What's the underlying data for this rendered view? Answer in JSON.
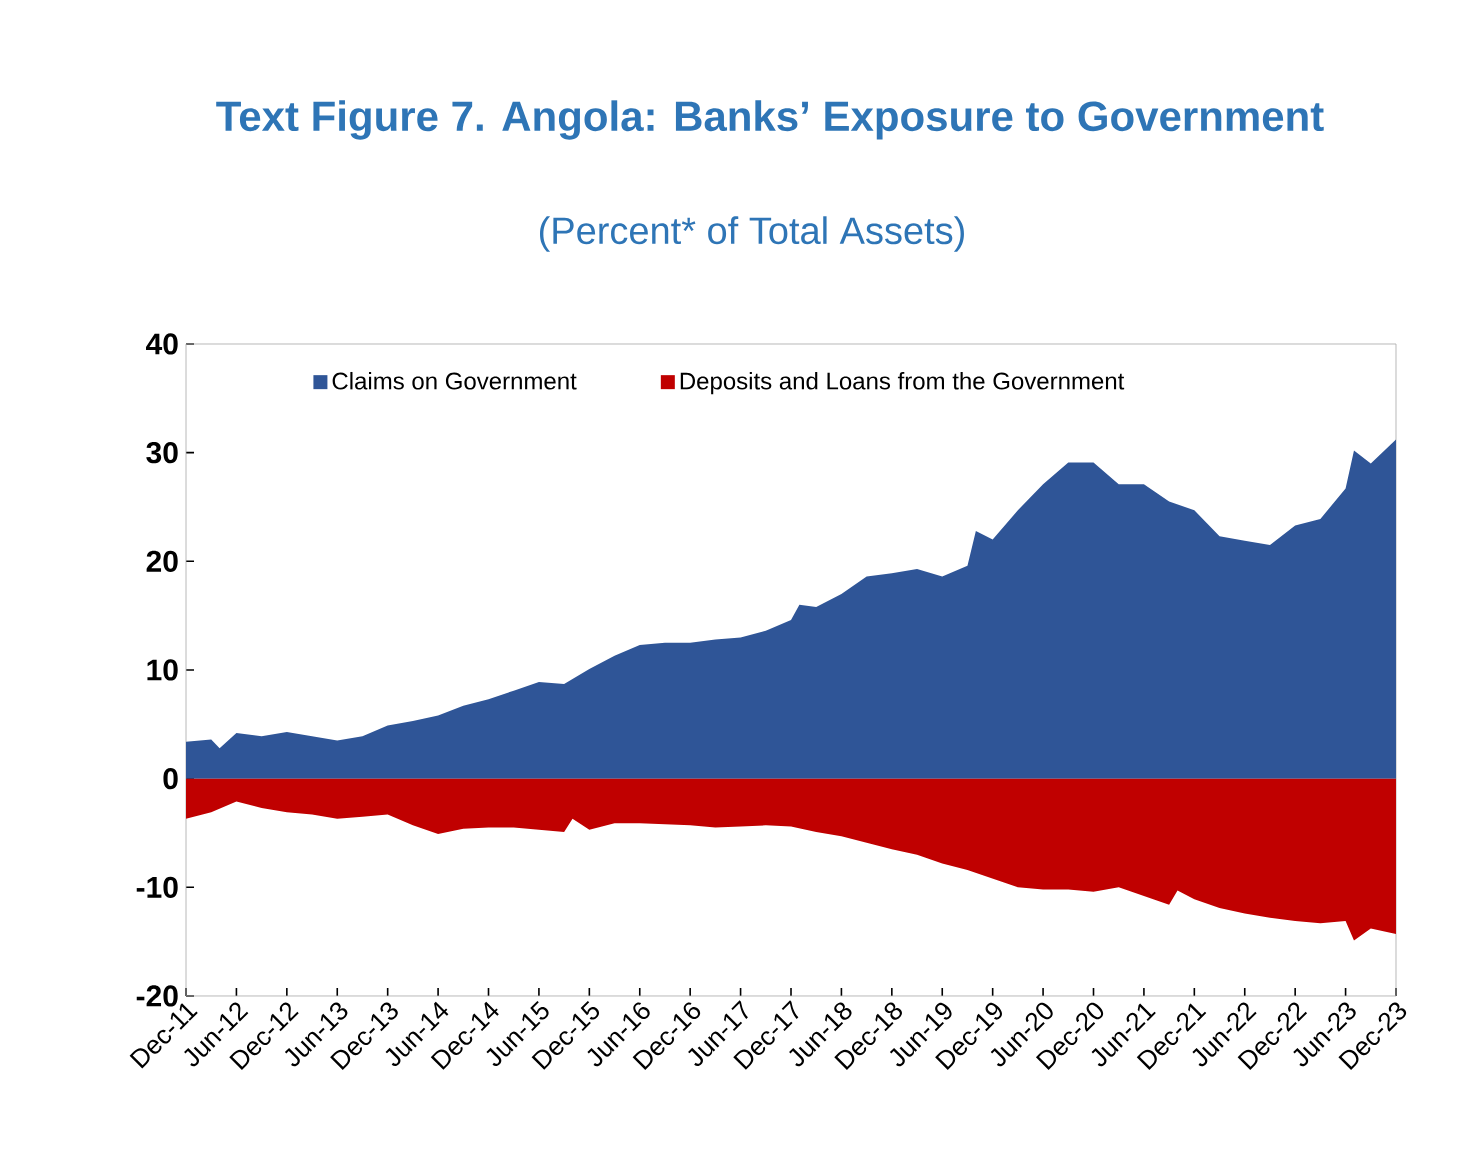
{
  "chart_data": {
    "type": "area",
    "title": "Text Figure 7. Angola: Banks’ Exposure to Government",
    "subtitle": "(Percent* of Total Assets)",
    "series": [
      {
        "name": "Claims on Government",
        "color": "#2f5597",
        "x": [
          "2011-12",
          "2012-03",
          "2012-04",
          "2012-06",
          "2012-09",
          "2012-12",
          "2013-03",
          "2013-06",
          "2013-09",
          "2013-12",
          "2014-03",
          "2014-06",
          "2014-09",
          "2014-12",
          "2015-03",
          "2015-06",
          "2015-09",
          "2015-12",
          "2016-03",
          "2016-06",
          "2016-09",
          "2016-12",
          "2017-03",
          "2017-06",
          "2017-09",
          "2017-12",
          "2018-01",
          "2018-03",
          "2018-06",
          "2018-09",
          "2018-12",
          "2019-03",
          "2019-06",
          "2019-09",
          "2019-10",
          "2019-12",
          "2020-03",
          "2020-06",
          "2020-09",
          "2020-12",
          "2021-03",
          "2021-06",
          "2021-09",
          "2021-12",
          "2022-03",
          "2022-06",
          "2022-09",
          "2022-12",
          "2023-03",
          "2023-06",
          "2023-07",
          "2023-09",
          "2023-12"
        ],
        "values": [
          3.4,
          3.6,
          2.8,
          4.2,
          3.9,
          4.3,
          3.9,
          3.5,
          3.9,
          4.9,
          5.3,
          5.8,
          6.7,
          7.3,
          8.1,
          8.9,
          8.7,
          10.1,
          11.3,
          12.3,
          12.5,
          12.5,
          12.8,
          13.0,
          13.6,
          14.6,
          16.0,
          15.8,
          17.0,
          18.6,
          18.9,
          19.3,
          18.6,
          19.6,
          22.8,
          22.0,
          24.7,
          27.1,
          29.1,
          29.1,
          27.1,
          27.1,
          25.5,
          24.7,
          22.3,
          21.9,
          21.5,
          23.3,
          23.9,
          26.7,
          30.2,
          29.0,
          31.2
        ]
      },
      {
        "name": "Deposits and Loans from the Government",
        "color": "#c00000",
        "x": [
          "2011-12",
          "2012-03",
          "2012-06",
          "2012-09",
          "2012-12",
          "2013-03",
          "2013-06",
          "2013-09",
          "2013-12",
          "2014-03",
          "2014-06",
          "2014-09",
          "2014-12",
          "2015-03",
          "2015-06",
          "2015-09",
          "2015-10",
          "2015-12",
          "2016-03",
          "2016-06",
          "2016-09",
          "2016-12",
          "2017-03",
          "2017-06",
          "2017-09",
          "2017-12",
          "2018-03",
          "2018-06",
          "2018-09",
          "2018-12",
          "2019-03",
          "2019-06",
          "2019-09",
          "2019-12",
          "2020-03",
          "2020-06",
          "2020-09",
          "2020-12",
          "2021-03",
          "2021-06",
          "2021-09",
          "2021-10",
          "2021-12",
          "2022-03",
          "2022-06",
          "2022-09",
          "2022-12",
          "2023-03",
          "2023-06",
          "2023-07",
          "2023-09",
          "2023-12"
        ],
        "values": [
          -3.7,
          -3.1,
          -2.1,
          -2.7,
          -3.1,
          -3.3,
          -3.7,
          -3.5,
          -3.3,
          -4.3,
          -5.1,
          -4.6,
          -4.5,
          -4.5,
          -4.7,
          -4.9,
          -3.7,
          -4.7,
          -4.1,
          -4.1,
          -4.2,
          -4.3,
          -4.5,
          -4.4,
          -4.3,
          -4.4,
          -4.9,
          -5.3,
          -5.9,
          -6.5,
          -7.0,
          -7.8,
          -8.4,
          -9.2,
          -10.0,
          -10.2,
          -10.2,
          -10.4,
          -10.0,
          -10.8,
          -11.6,
          -10.3,
          -11.1,
          -11.9,
          -12.4,
          -12.8,
          -13.1,
          -13.3,
          -13.1,
          -14.9,
          -13.8,
          -14.3
        ]
      }
    ],
    "xlim": [
      "2011-12",
      "2023-12"
    ],
    "xticks": [
      {
        "value": "2011-12",
        "label": "Dec-11"
      },
      {
        "value": "2012-06",
        "label": "Jun-12"
      },
      {
        "value": "2012-12",
        "label": "Dec-12"
      },
      {
        "value": "2013-06",
        "label": "Jun-13"
      },
      {
        "value": "2013-12",
        "label": "Dec-13"
      },
      {
        "value": "2014-06",
        "label": "Jun-14"
      },
      {
        "value": "2014-12",
        "label": "Dec-14"
      },
      {
        "value": "2015-06",
        "label": "Jun-15"
      },
      {
        "value": "2015-12",
        "label": "Dec-15"
      },
      {
        "value": "2016-06",
        "label": "Jun-16"
      },
      {
        "value": "2016-12",
        "label": "Dec-16"
      },
      {
        "value": "2017-06",
        "label": "Jun-17"
      },
      {
        "value": "2017-12",
        "label": "Dec-17"
      },
      {
        "value": "2018-06",
        "label": "Jun-18"
      },
      {
        "value": "2018-12",
        "label": "Dec-18"
      },
      {
        "value": "2019-06",
        "label": "Jun-19"
      },
      {
        "value": "2019-12",
        "label": "Dec-19"
      },
      {
        "value": "2020-06",
        "label": "Jun-20"
      },
      {
        "value": "2020-12",
        "label": "Dec-20"
      },
      {
        "value": "2021-06",
        "label": "Jun-21"
      },
      {
        "value": "2021-12",
        "label": "Dec-21"
      },
      {
        "value": "2022-06",
        "label": "Jun-22"
      },
      {
        "value": "2022-12",
        "label": "Dec-22"
      },
      {
        "value": "2023-06",
        "label": "Jun-23"
      },
      {
        "value": "2023-12",
        "label": "Dec-23"
      }
    ],
    "ylim": [
      -20,
      40
    ],
    "yticks": [
      -20,
      -10,
      0,
      10,
      20,
      30,
      40
    ],
    "grid": false,
    "legend": "top left"
  }
}
